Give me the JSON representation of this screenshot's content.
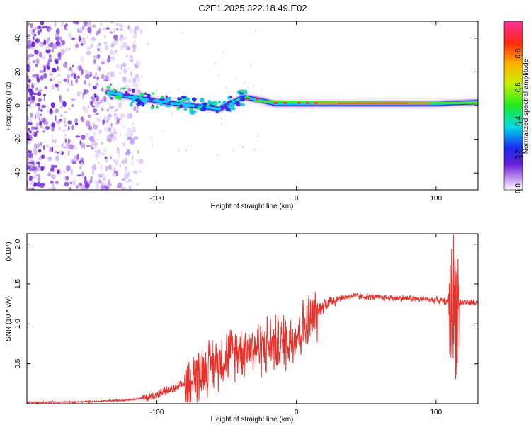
{
  "title": "C2E1.2025.322.18.49.E02",
  "chart_data": [
    {
      "type": "heatmap",
      "name": "spectrogram",
      "xlabel": "Height of straight line (km)",
      "ylabel": "Frequency (Hz)",
      "xlim": [
        -193,
        130
      ],
      "ylim": [
        -50,
        50
      ],
      "xticks": [
        -100,
        0,
        100
      ],
      "yticks": [
        -40,
        -20,
        0,
        20,
        40
      ],
      "colorbar": {
        "label": "Normalized spectral amplitude",
        "range": [
          0,
          1
        ],
        "ticks": [
          0.0,
          0.2,
          0.4,
          0.6,
          0.8
        ]
      },
      "signal_track": [
        {
          "x": -135,
          "f": 8
        },
        {
          "x": -125,
          "f": 6
        },
        {
          "x": -110,
          "f": 4
        },
        {
          "x": -95,
          "f": 2
        },
        {
          "x": -85,
          "f": 1
        },
        {
          "x": -75,
          "f": 0
        },
        {
          "x": -65,
          "f": -1
        },
        {
          "x": -55,
          "f": -2
        },
        {
          "x": -45,
          "f": 2
        },
        {
          "x": -38,
          "f": 5
        },
        {
          "x": -25,
          "f": 3
        },
        {
          "x": -15,
          "f": 1
        },
        {
          "x": 0,
          "f": 1
        },
        {
          "x": 20,
          "f": 1
        },
        {
          "x": 60,
          "f": 1
        },
        {
          "x": 100,
          "f": 1
        },
        {
          "x": 130,
          "f": 2
        }
      ]
    },
    {
      "type": "line",
      "name": "snr",
      "xlabel": "Height of straight line (km)",
      "ylabel": "SNR (10 * v/v)",
      "yscale_label": "(x10⁴)",
      "xlim": [
        -193,
        130
      ],
      "ylim": [
        0,
        2.13
      ],
      "xticks": [
        -100,
        0,
        100
      ],
      "yticks": [
        0.5,
        1.0,
        1.5,
        2.0
      ],
      "series": [
        {
          "name": "SNR",
          "color": "#e8302a",
          "x": [
            -193,
            -160,
            -140,
            -120,
            -105,
            -95,
            -85,
            -75,
            -65,
            -55,
            -45,
            -35,
            -25,
            -15,
            -5,
            5,
            10,
            15,
            20,
            30,
            40,
            60,
            80,
            100,
            108,
            112,
            114,
            116,
            118,
            122,
            130
          ],
          "y": [
            0.02,
            0.02,
            0.03,
            0.05,
            0.08,
            0.15,
            0.2,
            0.3,
            0.45,
            0.55,
            0.65,
            0.7,
            0.72,
            0.75,
            0.8,
            0.95,
            1.05,
            1.15,
            1.25,
            1.32,
            1.35,
            1.33,
            1.32,
            1.3,
            1.28,
            1.25,
            1.3,
            1.25,
            1.27,
            1.27,
            1.26
          ]
        }
      ]
    }
  ]
}
